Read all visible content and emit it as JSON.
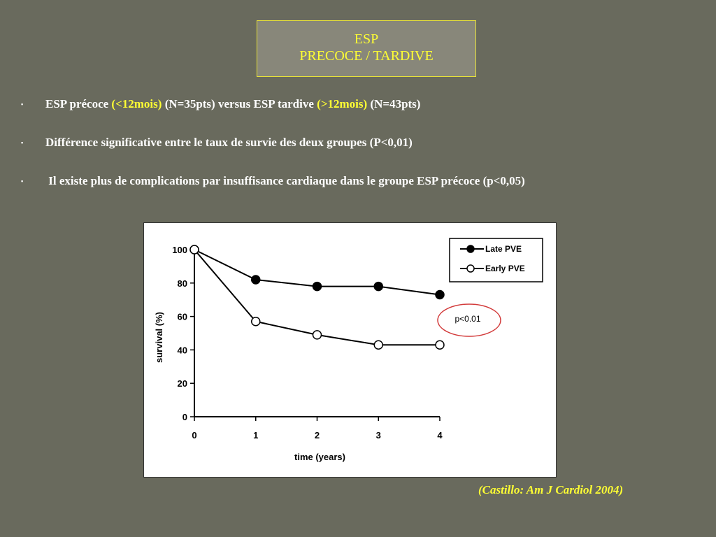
{
  "slide": {
    "title_line1": "ESP",
    "title_line2": "PRECOCE / TARDIVE",
    "bullet_marker": "▪",
    "bullets": [
      {
        "part1": "ESP précoce ",
        "hl1": "(<12mois)",
        "part2": " (N=35pts) versus ESP tardive ",
        "hl2": ">12mois)",
        "part3": " (N=43pts)"
      },
      {
        "text": "Différence significative entre le taux de survie des deux groupes (P<0,01)"
      },
      {
        "text": " Il existe plus de complications par insuffisance cardiaque dans le groupe ESP précoce (p<0,05)"
      }
    ],
    "citation": "(Castillo: Am J Cardiol 2004)"
  },
  "colors": {
    "background": "#696a5d",
    "title_box": "#88877a",
    "highlight": "#ffff33",
    "annotation_circle": "#d23a3a"
  },
  "chart_data": {
    "type": "line",
    "x": [
      0,
      1,
      2,
      3,
      4
    ],
    "xlabel": "time (years)",
    "ylabel": "survival (%)",
    "xlim": [
      0,
      4
    ],
    "ylim": [
      0,
      100
    ],
    "xticks": [
      "0",
      "1",
      "2",
      "3",
      "4"
    ],
    "yticks": [
      "0",
      "20",
      "40",
      "60",
      "80",
      "100"
    ],
    "grid": false,
    "legend": "top-right",
    "series": [
      {
        "name": "Late PVE",
        "marker": "filled-circle",
        "values": [
          100,
          82,
          78,
          78,
          73
        ]
      },
      {
        "name": "Early PVE",
        "marker": "open-circle",
        "values": [
          100,
          57,
          49,
          43,
          43
        ]
      }
    ],
    "annotation": "p<0.01"
  }
}
